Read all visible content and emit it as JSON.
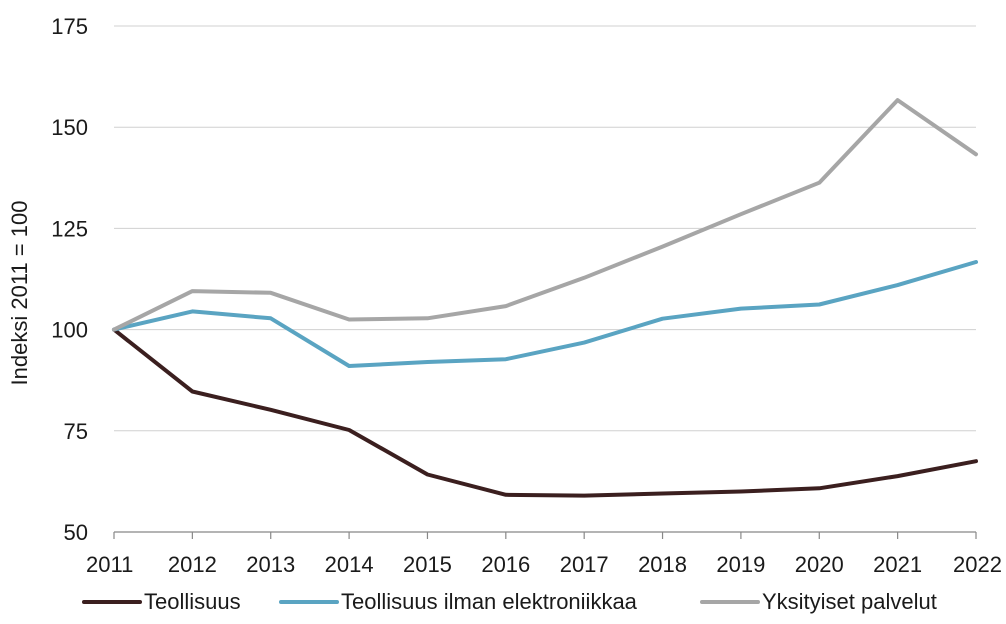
{
  "chart_data": {
    "type": "line",
    "title": "",
    "xlabel": "",
    "ylabel": "Indeksi 2011 = 100",
    "ylim": [
      50,
      175
    ],
    "yticks": [
      50,
      75,
      100,
      125,
      150,
      175
    ],
    "x": [
      "2011",
      "2012",
      "2013",
      "2014",
      "2015",
      "2016",
      "2017",
      "2018",
      "2019",
      "2020",
      "2021",
      "2022"
    ],
    "grid": "horizontal",
    "legend_position": "bottom",
    "series": [
      {
        "name": "Teollisuus",
        "color": "#3b1f1f",
        "values": [
          100,
          84.7,
          80.2,
          75.2,
          64.2,
          59.2,
          59.0,
          59.5,
          60.0,
          60.8,
          63.8,
          67.5
        ]
      },
      {
        "name": "Teollisuus ilman elektroniikkaa",
        "color": "#5aa4c2",
        "values": [
          100,
          104.5,
          102.8,
          91.0,
          92.0,
          92.7,
          96.8,
          102.7,
          105.2,
          106.2,
          111.0,
          116.7
        ]
      },
      {
        "name": "Yksityiset palvelut",
        "color": "#a6a6a6",
        "values": [
          100,
          109.5,
          109.1,
          102.5,
          102.8,
          105.8,
          112.8,
          120.5,
          128.5,
          136.3,
          156.7,
          143.3
        ]
      }
    ]
  }
}
